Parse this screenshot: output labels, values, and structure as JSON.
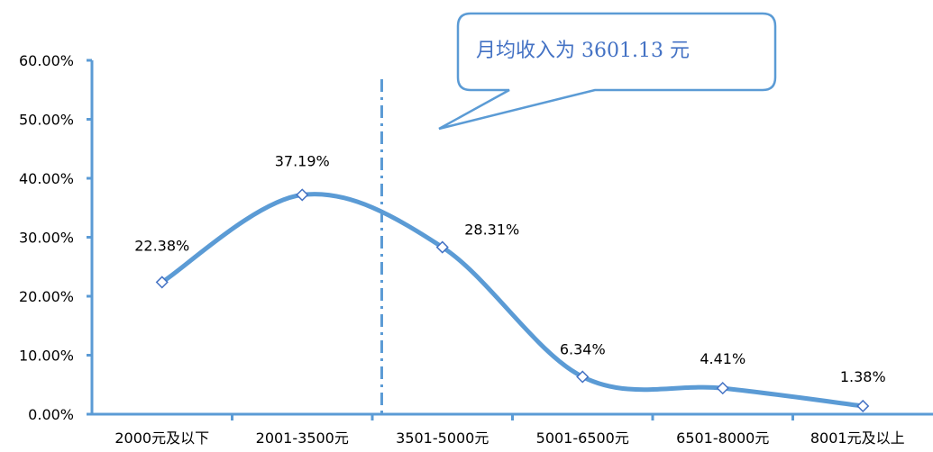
{
  "chart_data": {
    "type": "line",
    "categories": [
      "2000元及以下",
      "2001-3500元",
      "3501-5000元",
      "5001-6500元",
      "6501-8000元",
      "8001元及以上"
    ],
    "values": [
      22.38,
      37.19,
      28.31,
      6.34,
      4.41,
      1.38
    ],
    "data_labels": [
      "22.38%",
      "37.19%",
      "28.31%",
      "6.34%",
      "4.41%",
      "1.38%"
    ],
    "y_ticks": [
      "0.00%",
      "10.00%",
      "20.00%",
      "30.00%",
      "40.00%",
      "50.00%",
      "60.00%"
    ],
    "ylim": [
      0,
      60
    ],
    "smooth": true,
    "marker": "diamond",
    "reference_line": {
      "x_value": 3601.13,
      "style": "dash-dot"
    },
    "callout": "月均收入为 3601.13 元",
    "title": "",
    "xlabel": "",
    "ylabel": "",
    "grid": false,
    "line_color": "#5B9BD5",
    "marker_fill": "#ffffff",
    "callout_border_color": "#5B9BD5",
    "callout_text_color": "#4472C4"
  }
}
